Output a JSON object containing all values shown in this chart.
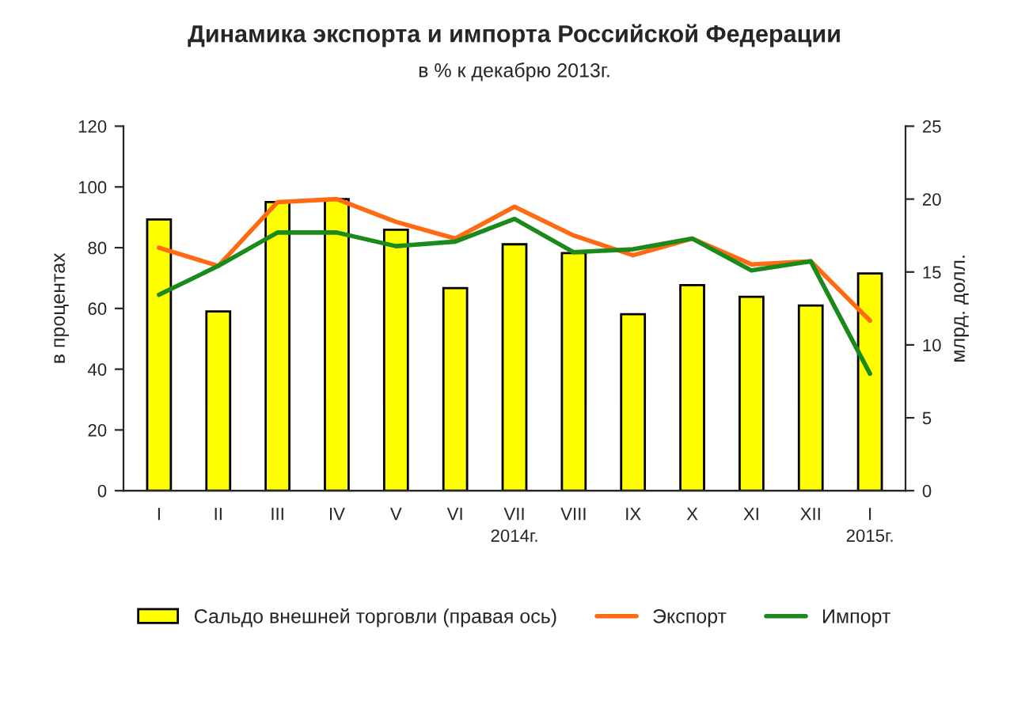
{
  "chart_data": {
    "type": "line",
    "title": "Динамика экспорта и импорта Российской Федерации",
    "subtitle": "в % к декабрю 2013г.",
    "ylabel": "в процентах",
    "y2label": "млрд. долл.",
    "categories": [
      "I",
      "II",
      "III",
      "IV",
      "V",
      "VI",
      "VII",
      "VIII",
      "IX",
      "X",
      "XI",
      "XII",
      "I"
    ],
    "series": [
      {
        "name": "Сальдо внешней торговли (правая ось)",
        "type": "bar",
        "axis": "y2",
        "color": "#ffff00",
        "values": [
          18.6,
          12.3,
          19.8,
          20.0,
          17.9,
          13.9,
          16.9,
          16.3,
          12.1,
          14.1,
          13.3,
          12.7,
          14.9
        ]
      },
      {
        "name": "Экспорт",
        "color": "#ff6a13",
        "values": [
          80,
          74,
          95,
          96,
          88.5,
          83,
          93.5,
          84,
          77.5,
          83,
          74.5,
          75.5,
          56
        ]
      },
      {
        "name": "Импорт",
        "color": "#1a8a1a",
        "values": [
          64.5,
          74,
          85,
          85,
          80.5,
          82,
          89.5,
          78.5,
          79.5,
          83,
          72.5,
          75.5,
          38.5
        ]
      }
    ],
    "ylim": [
      0,
      120
    ],
    "yticks": [
      0,
      20,
      40,
      60,
      80,
      100,
      120
    ],
    "y2lim": [
      0,
      25
    ],
    "y2ticks": [
      0,
      5,
      10,
      15,
      20,
      25
    ],
    "annotations": [
      "2014г.",
      "2015г."
    ],
    "legend": "bottom",
    "grid": false
  }
}
